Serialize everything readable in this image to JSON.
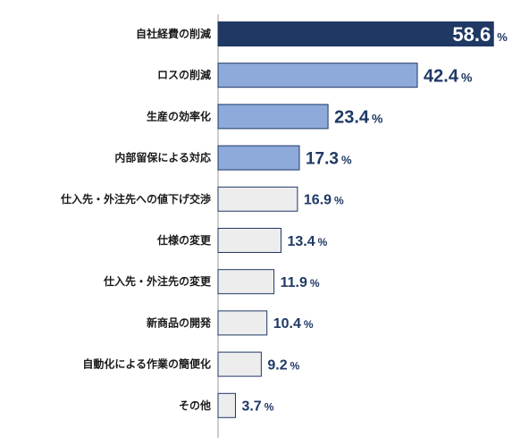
{
  "chart_data": {
    "type": "bar",
    "orientation": "horizontal",
    "title": "",
    "xlabel": "",
    "ylabel": "",
    "grid": false,
    "legend": "none",
    "xlim": [
      0,
      60
    ],
    "categories": [
      "自社経費の削減",
      "ロスの削減",
      "生産の効率化",
      "内部留保による対応",
      "仕入先・外注先への値下げ交渉",
      "仕様の変更",
      "仕入先・外注先の変更",
      "新商品の開発",
      "自動化による作業の簡便化",
      "その他"
    ],
    "values": [
      58.6,
      42.4,
      23.4,
      17.3,
      16.9,
      13.4,
      11.9,
      10.4,
      9.2,
      3.7
    ],
    "value_labels": [
      "58.6",
      "42.4",
      "23.4",
      "17.3",
      "16.9",
      "13.4",
      "11.9",
      "10.4",
      "9.2",
      "3.7"
    ],
    "unit": "%",
    "bar_colors": [
      "#1f3864",
      "#8eaadb",
      "#8eaadb",
      "#8eaadb",
      "#ededed",
      "#ededed",
      "#ededed",
      "#ededed",
      "#ededed",
      "#ededed"
    ],
    "label_colors": [
      "#ffffff",
      "#1f3864",
      "#1f3864",
      "#1f3864",
      "#1f3864",
      "#1f3864",
      "#1f3864",
      "#1f3864",
      "#1f3864",
      "#1f3864"
    ],
    "bar_border_color": "#1f3864",
    "axis_color": "#999999"
  }
}
